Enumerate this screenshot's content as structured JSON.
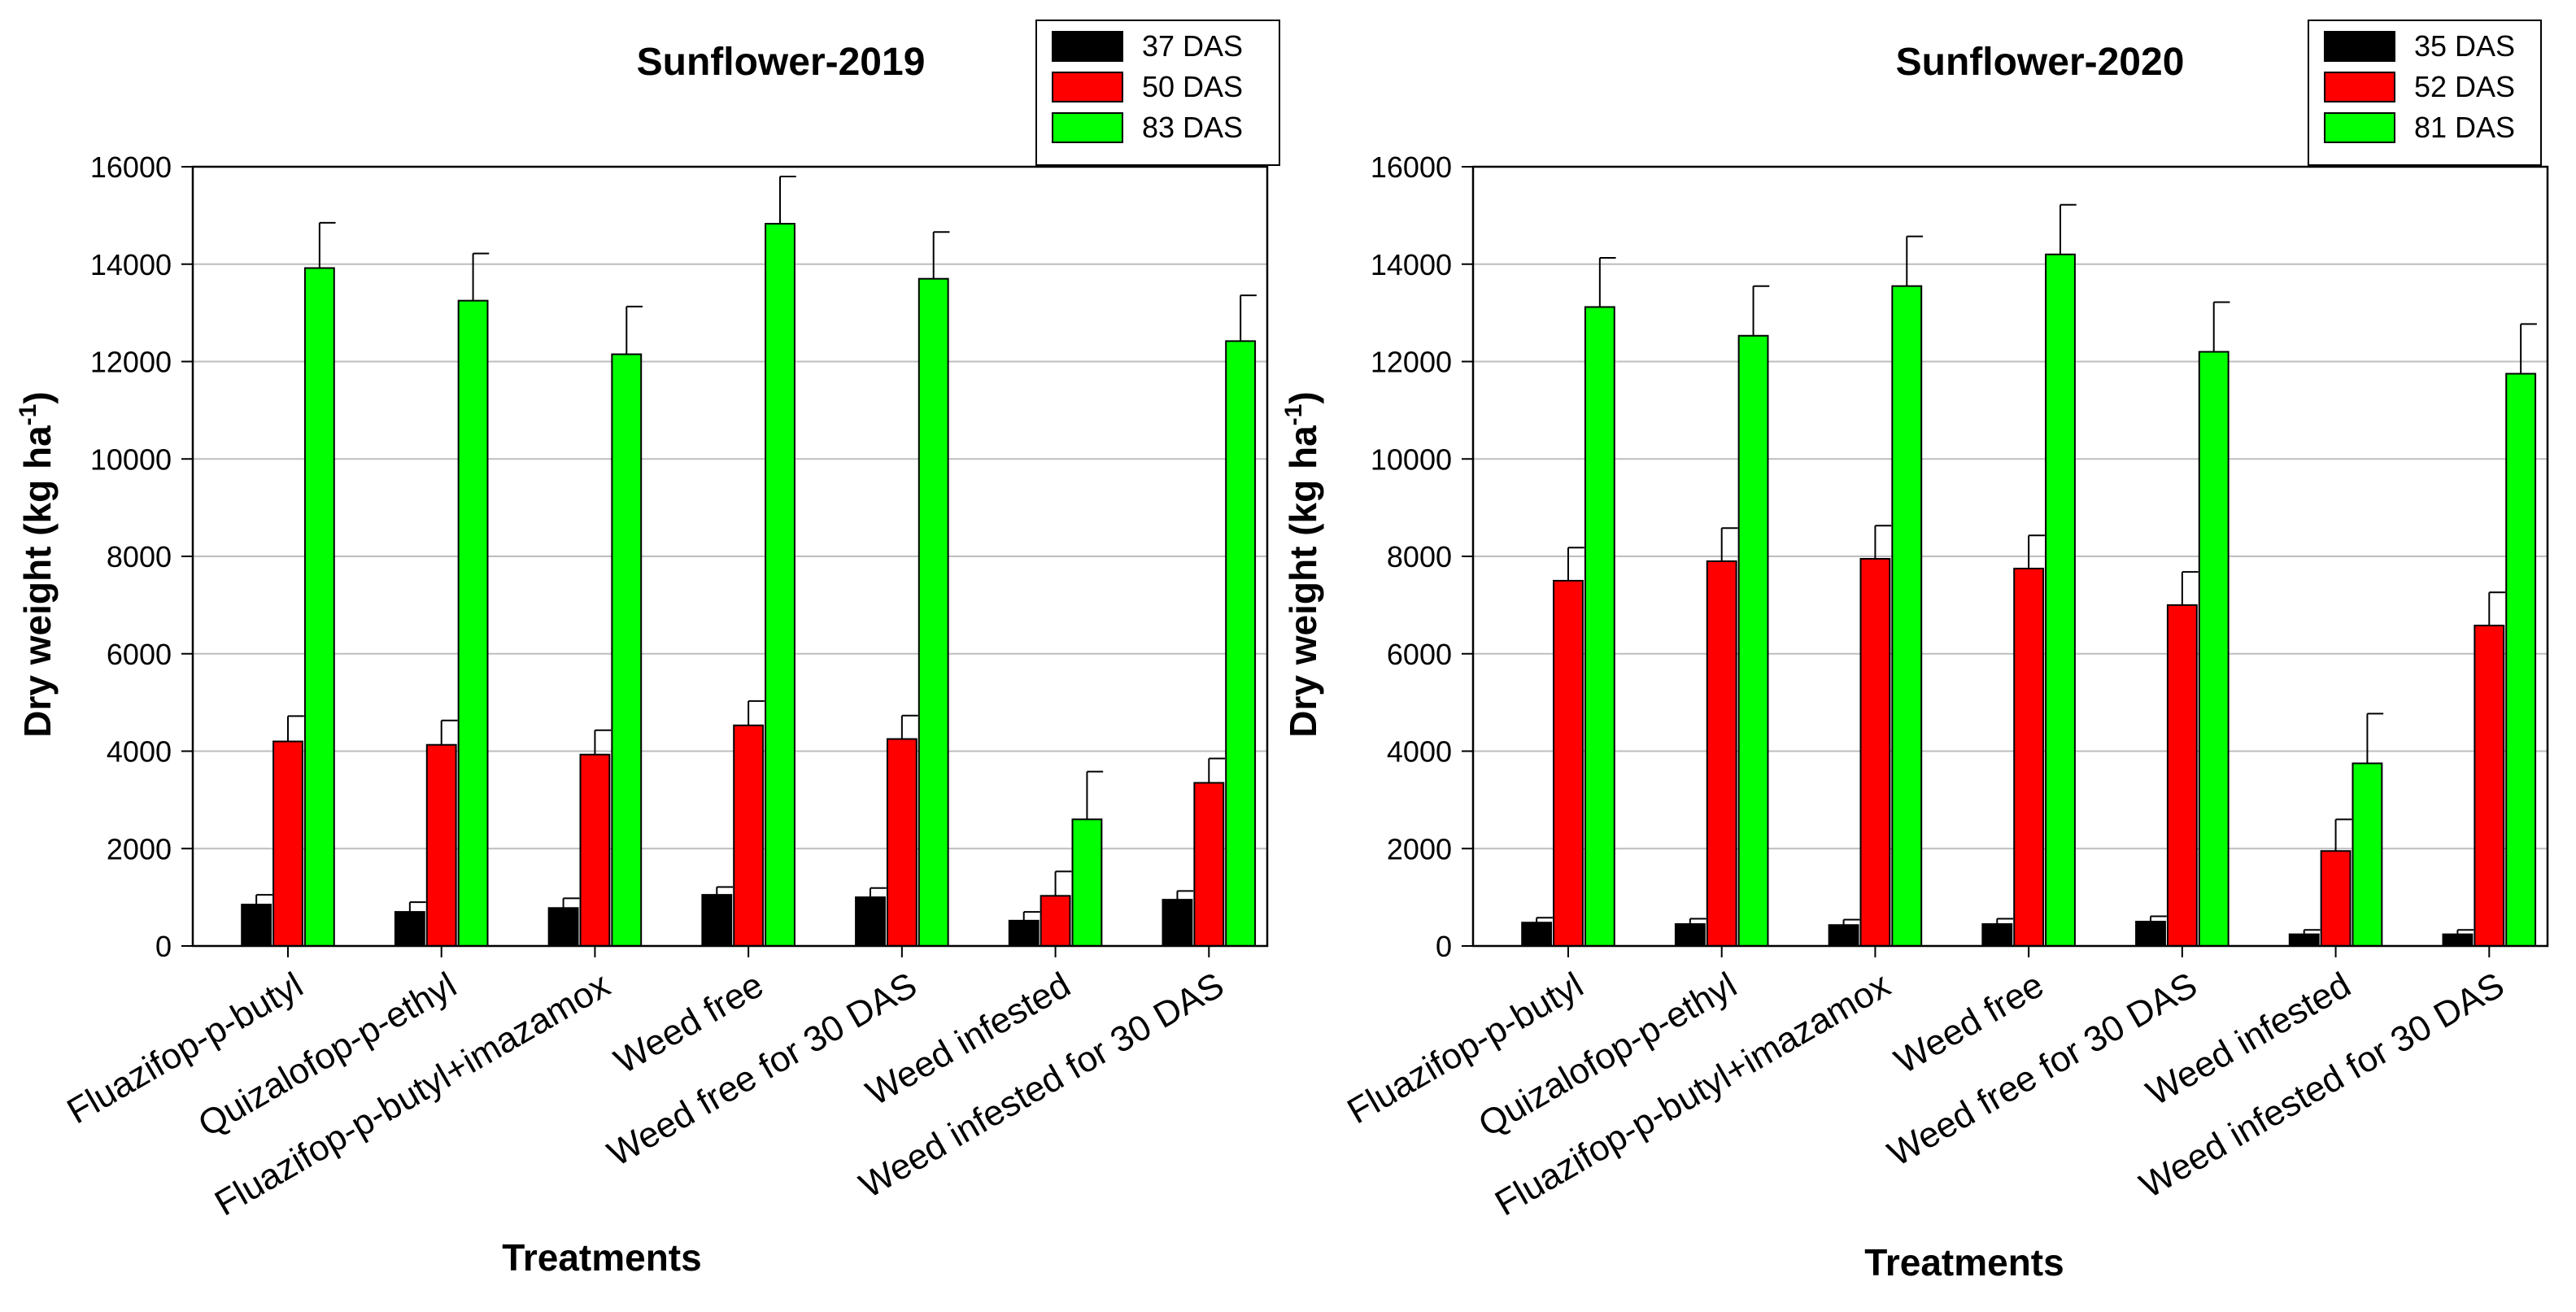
{
  "chart_data": [
    {
      "type": "bar",
      "title": "Sunflower-2019",
      "xlabel": "Treatments",
      "ylabel": "Dry weight (kg ha",
      "ylabel_sup": "-1",
      "ylabel_close": ")",
      "ylim": [
        0,
        16000
      ],
      "yticks": [
        "0",
        "2000",
        "4000",
        "6000",
        "8000",
        "10000",
        "12000",
        "14000",
        "16000"
      ],
      "grid": true,
      "legend": "top-right",
      "categories": [
        "Fluazifop-p-butyl",
        "Quizalofop-p-ethyl",
        "Fluazifop-p-butyl+imazamox",
        "Weed free",
        "Weed free for 30 DAS",
        "Weed infested",
        "Weed infested for 30 DAS"
      ],
      "series": [
        {
          "name": "37 DAS",
          "color": "#000000",
          "values": [
            850,
            700,
            780,
            1050,
            1000,
            520,
            950
          ],
          "errors": [
            200,
            200,
            200,
            160,
            190,
            180,
            180
          ]
        },
        {
          "name": "50 DAS",
          "color": "#ff0000",
          "values": [
            4200,
            4130,
            3930,
            4530,
            4250,
            1030,
            3350
          ],
          "errors": [
            520,
            500,
            500,
            500,
            480,
            500,
            500
          ]
        },
        {
          "name": "83 DAS",
          "color": "#00ff00",
          "values": [
            13920,
            13250,
            12150,
            14830,
            13700,
            2600,
            12420
          ],
          "errors": [
            930,
            970,
            980,
            970,
            960,
            980,
            940
          ]
        }
      ]
    },
    {
      "type": "bar",
      "title": "Sunflower-2020",
      "xlabel": "Treatments",
      "ylabel": "Dry weight (kg ha",
      "ylabel_sup": "-1",
      "ylabel_close": ")",
      "ylim": [
        0,
        16000
      ],
      "yticks": [
        "0",
        "2000",
        "4000",
        "6000",
        "8000",
        "10000",
        "12000",
        "14000",
        "16000"
      ],
      "grid": true,
      "legend": "top-right",
      "categories": [
        "Fluazifop-p-butyl",
        "Quizalofop-p-ethyl",
        "Fluazifop-p-butyl+imazamox",
        "Weed free",
        "Weed free for 30 DAS",
        "Weed infested",
        "Weed infested for 30 DAS"
      ],
      "series": [
        {
          "name": "35 DAS",
          "color": "#000000",
          "values": [
            480,
            450,
            430,
            450,
            500,
            240,
            240
          ],
          "errors": [
            100,
            110,
            110,
            110,
            110,
            90,
            90
          ]
        },
        {
          "name": "52 DAS",
          "color": "#ff0000",
          "values": [
            7500,
            7900,
            7950,
            7750,
            7000,
            1950,
            6580
          ],
          "errors": [
            680,
            680,
            680,
            680,
            680,
            650,
            680
          ]
        },
        {
          "name": "81 DAS",
          "color": "#00ff00",
          "values": [
            13120,
            12530,
            13550,
            14200,
            12200,
            3750,
            11750
          ],
          "errors": [
            1010,
            1020,
            1020,
            1020,
            1020,
            1020,
            1020
          ]
        }
      ]
    }
  ]
}
